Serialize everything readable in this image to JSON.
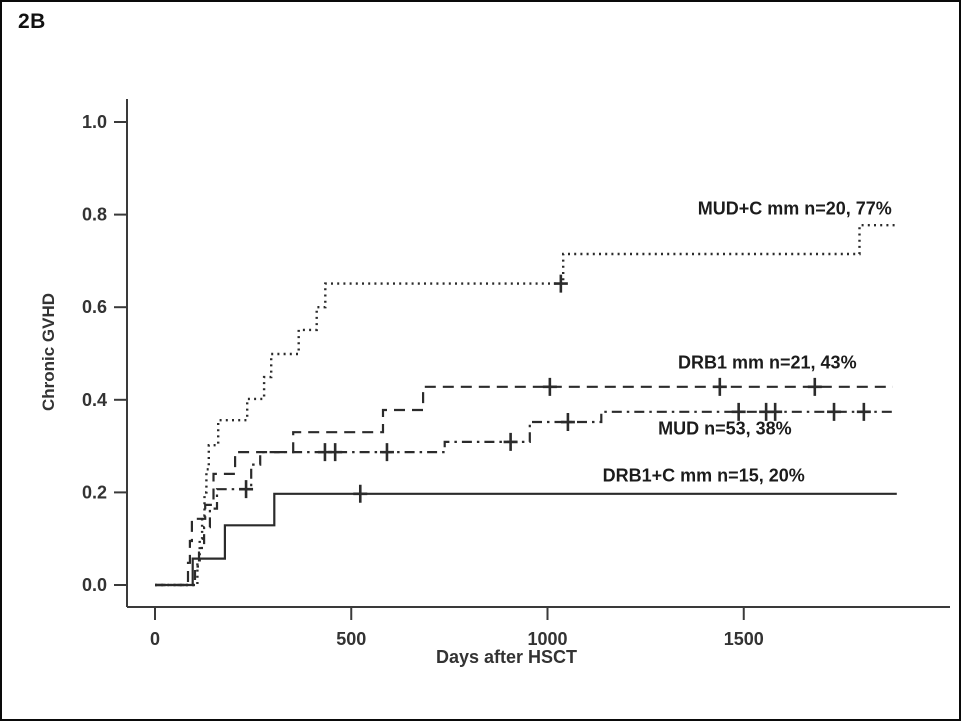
{
  "figure": {
    "label": "2B"
  },
  "colors": {
    "curve": "#2b2b2b",
    "axis": "#3a3a3a",
    "tick_label": "#333333",
    "annotation": "#1c1c1c",
    "background": "#ffffff",
    "border": "#0a0a0a"
  },
  "chart_data": {
    "type": "line",
    "chart_style": "kaplan-meier-cumulative-incidence-steps",
    "title": "2B",
    "xlabel": "Days after HSCT",
    "ylabel": "Chronic GVHD",
    "xlim": [
      0,
      2030
    ],
    "ylim": [
      0,
      1.0
    ],
    "xticks": [
      "0",
      "500",
      "1000",
      "1500"
    ],
    "xtick_values": [
      0,
      500,
      1000,
      1500
    ],
    "yticks": [
      "0.0",
      "0.2",
      "0.4",
      "0.6",
      "0.8",
      "1.0"
    ],
    "ytick_values": [
      0.0,
      0.2,
      0.4,
      0.6,
      0.8,
      1.0
    ],
    "grid": false,
    "legend_position": "inline-labels",
    "series": [
      {
        "name": "MUD+C mm",
        "label": "MUD+C mm n=20, 77%",
        "n": 20,
        "final_percent": 77,
        "line_style": "dotted",
        "steps": [
          [
            108,
            0.05
          ],
          [
            114,
            0.1
          ],
          [
            120,
            0.15
          ],
          [
            126,
            0.2
          ],
          [
            131,
            0.25
          ],
          [
            137,
            0.302
          ],
          [
            161,
            0.356
          ],
          [
            235,
            0.402
          ],
          [
            278,
            0.449
          ],
          [
            296,
            0.499
          ],
          [
            366,
            0.551
          ],
          [
            412,
            0.6
          ],
          [
            434,
            0.651
          ],
          [
            1040,
            0.715
          ],
          [
            1795,
            0.777
          ]
        ],
        "end_day": 1890,
        "censors": [
          [
            1034,
            0.651
          ]
        ],
        "label_pos": [
          1630,
          0.8
        ]
      },
      {
        "name": "DRB1 mm",
        "label": "DRB1 mm n=21, 43%",
        "n": 21,
        "final_percent": 43,
        "line_style": "dashed",
        "steps": [
          [
            84,
            0.048
          ],
          [
            89,
            0.095
          ],
          [
            94,
            0.143
          ],
          [
            128,
            0.173
          ],
          [
            149,
            0.24
          ],
          [
            204,
            0.287
          ],
          [
            352,
            0.33
          ],
          [
            581,
            0.378
          ],
          [
            683,
            0.428
          ]
        ],
        "end_day": 1880,
        "censors": [
          [
            1006,
            0.428
          ],
          [
            1439,
            0.428
          ],
          [
            1681,
            0.428
          ]
        ],
        "label_pos": [
          1560,
          0.468
        ]
      },
      {
        "name": "MUD",
        "label": "MUD n=53, 38%",
        "n": 53,
        "final_percent": 38,
        "line_style": "dashdot",
        "steps": [
          [
            102,
            0.04
          ],
          [
            112,
            0.08
          ],
          [
            125,
            0.125
          ],
          [
            140,
            0.165
          ],
          [
            158,
            0.207
          ],
          [
            245,
            0.26
          ],
          [
            268,
            0.287
          ],
          [
            738,
            0.309
          ],
          [
            955,
            0.352
          ],
          [
            1137,
            0.374
          ]
        ],
        "end_day": 1885,
        "censors": [
          [
            232,
            0.207
          ],
          [
            433,
            0.287
          ],
          [
            459,
            0.287
          ],
          [
            591,
            0.287
          ],
          [
            906,
            0.309
          ],
          [
            1052,
            0.352
          ],
          [
            1487,
            0.374
          ],
          [
            1557,
            0.374
          ],
          [
            1580,
            0.374
          ],
          [
            1730,
            0.374
          ],
          [
            1806,
            0.374
          ]
        ],
        "label_pos": [
          1452,
          0.325
        ]
      },
      {
        "name": "DRB1+C mm",
        "label": "DRB1+C mm n=15, 20%",
        "n": 15,
        "final_percent": 20,
        "line_style": "solid",
        "steps": [
          [
            96,
            0.057
          ],
          [
            178,
            0.129
          ],
          [
            304,
            0.197
          ]
        ],
        "end_day": 1890,
        "censors": [
          [
            523,
            0.197
          ]
        ],
        "label_pos": [
          1398,
          0.224
        ]
      }
    ]
  }
}
